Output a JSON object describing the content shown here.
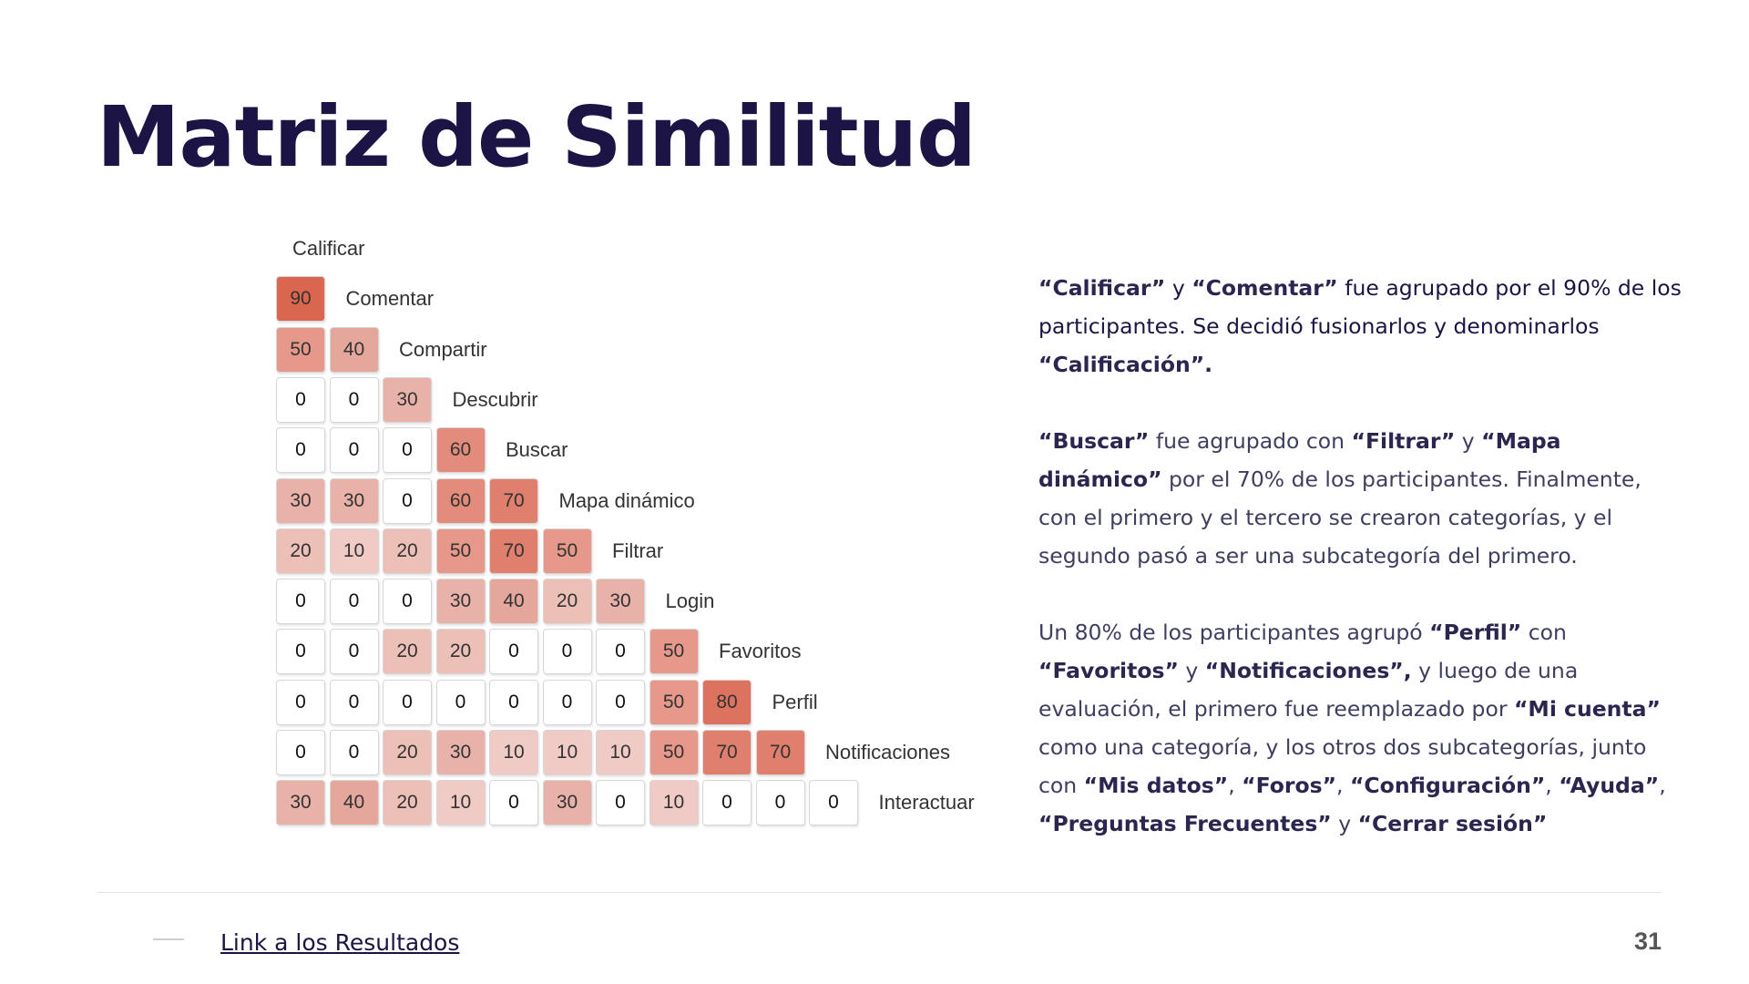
{
  "slide": {
    "title": "Matriz de Similitud",
    "page_number": "31",
    "footer_link": "Link a los Resultados"
  },
  "colors": {
    "title": "#1c1445",
    "cell_low": "#f6d6d2",
    "cell_high": "#e0644c"
  },
  "matrix": {
    "items": [
      "Calificar",
      "Comentar",
      "Compartir",
      "Descubrir",
      "Buscar",
      "Mapa dinámico",
      "Filtrar",
      "Login",
      "Favoritos",
      "Perfil",
      "Notificaciones",
      "Interactuar"
    ],
    "rows": [
      [
        90
      ],
      [
        50,
        40
      ],
      [
        0,
        0,
        30
      ],
      [
        0,
        0,
        0,
        60
      ],
      [
        30,
        30,
        0,
        60,
        70
      ],
      [
        20,
        10,
        20,
        50,
        70,
        50
      ],
      [
        0,
        0,
        0,
        30,
        40,
        20,
        30
      ],
      [
        0,
        0,
        20,
        20,
        0,
        0,
        0,
        50
      ],
      [
        0,
        0,
        0,
        0,
        0,
        0,
        0,
        50,
        80
      ],
      [
        0,
        0,
        20,
        30,
        10,
        10,
        10,
        50,
        70,
        70
      ],
      [
        30,
        40,
        20,
        10,
        0,
        30,
        0,
        10,
        0,
        0,
        0
      ]
    ]
  },
  "paragraphs": [
    [
      {
        "t": "“Calificar”",
        "b": true
      },
      {
        "t": " y ",
        "b": false
      },
      {
        "t": "“Comentar”",
        "b": true
      },
      {
        "t": " fue agrupado por el 90% de los participantes. Se decidió fusionarlos y denominarlos ",
        "b": false
      },
      {
        "t": "“Calificación”.",
        "b": true
      }
    ],
    [
      {
        "t": "“Buscar”",
        "b": true
      },
      {
        "t": " fue agrupado con ",
        "b": false
      },
      {
        "t": "“Filtrar”",
        "b": true
      },
      {
        "t": " y ",
        "b": false
      },
      {
        "t": "“Mapa dinámico”",
        "b": true
      },
      {
        "t": " por el 70% de los participantes. Finalmente, con el primero y el tercero se crearon categorías, y el segundo pasó a ser una subcategoría del primero.",
        "b": false
      }
    ],
    [
      {
        "t": "Un 80% de los participantes agrupó ",
        "b": false
      },
      {
        "t": "“Perfil”",
        "b": true
      },
      {
        "t": " con ",
        "b": false
      },
      {
        "t": "“Favoritos”",
        "b": true
      },
      {
        "t": " y ",
        "b": false
      },
      {
        "t": "“Notificaciones”,",
        "b": true
      },
      {
        "t": " y luego de una evaluación, el primero fue reemplazado por ",
        "b": false
      },
      {
        "t": "“Mi cuenta”",
        "b": true
      },
      {
        "t": " como una categoría, y los otros dos subcategorías, junto con ",
        "b": false
      },
      {
        "t": "“Mis datos”",
        "b": true
      },
      {
        "t": ", ",
        "b": false
      },
      {
        "t": "“Foros”",
        "b": true
      },
      {
        "t": ", ",
        "b": false
      },
      {
        "t": "“Configuración”",
        "b": true
      },
      {
        "t": ", ",
        "b": false
      },
      {
        "t": "“Ayuda”",
        "b": true
      },
      {
        "t": ", ",
        "b": false
      },
      {
        "t": "“Preguntas Frecuentes”",
        "b": true
      },
      {
        "t": " y ",
        "b": false
      },
      {
        "t": "“Cerrar sesión”",
        "b": true
      }
    ]
  ]
}
